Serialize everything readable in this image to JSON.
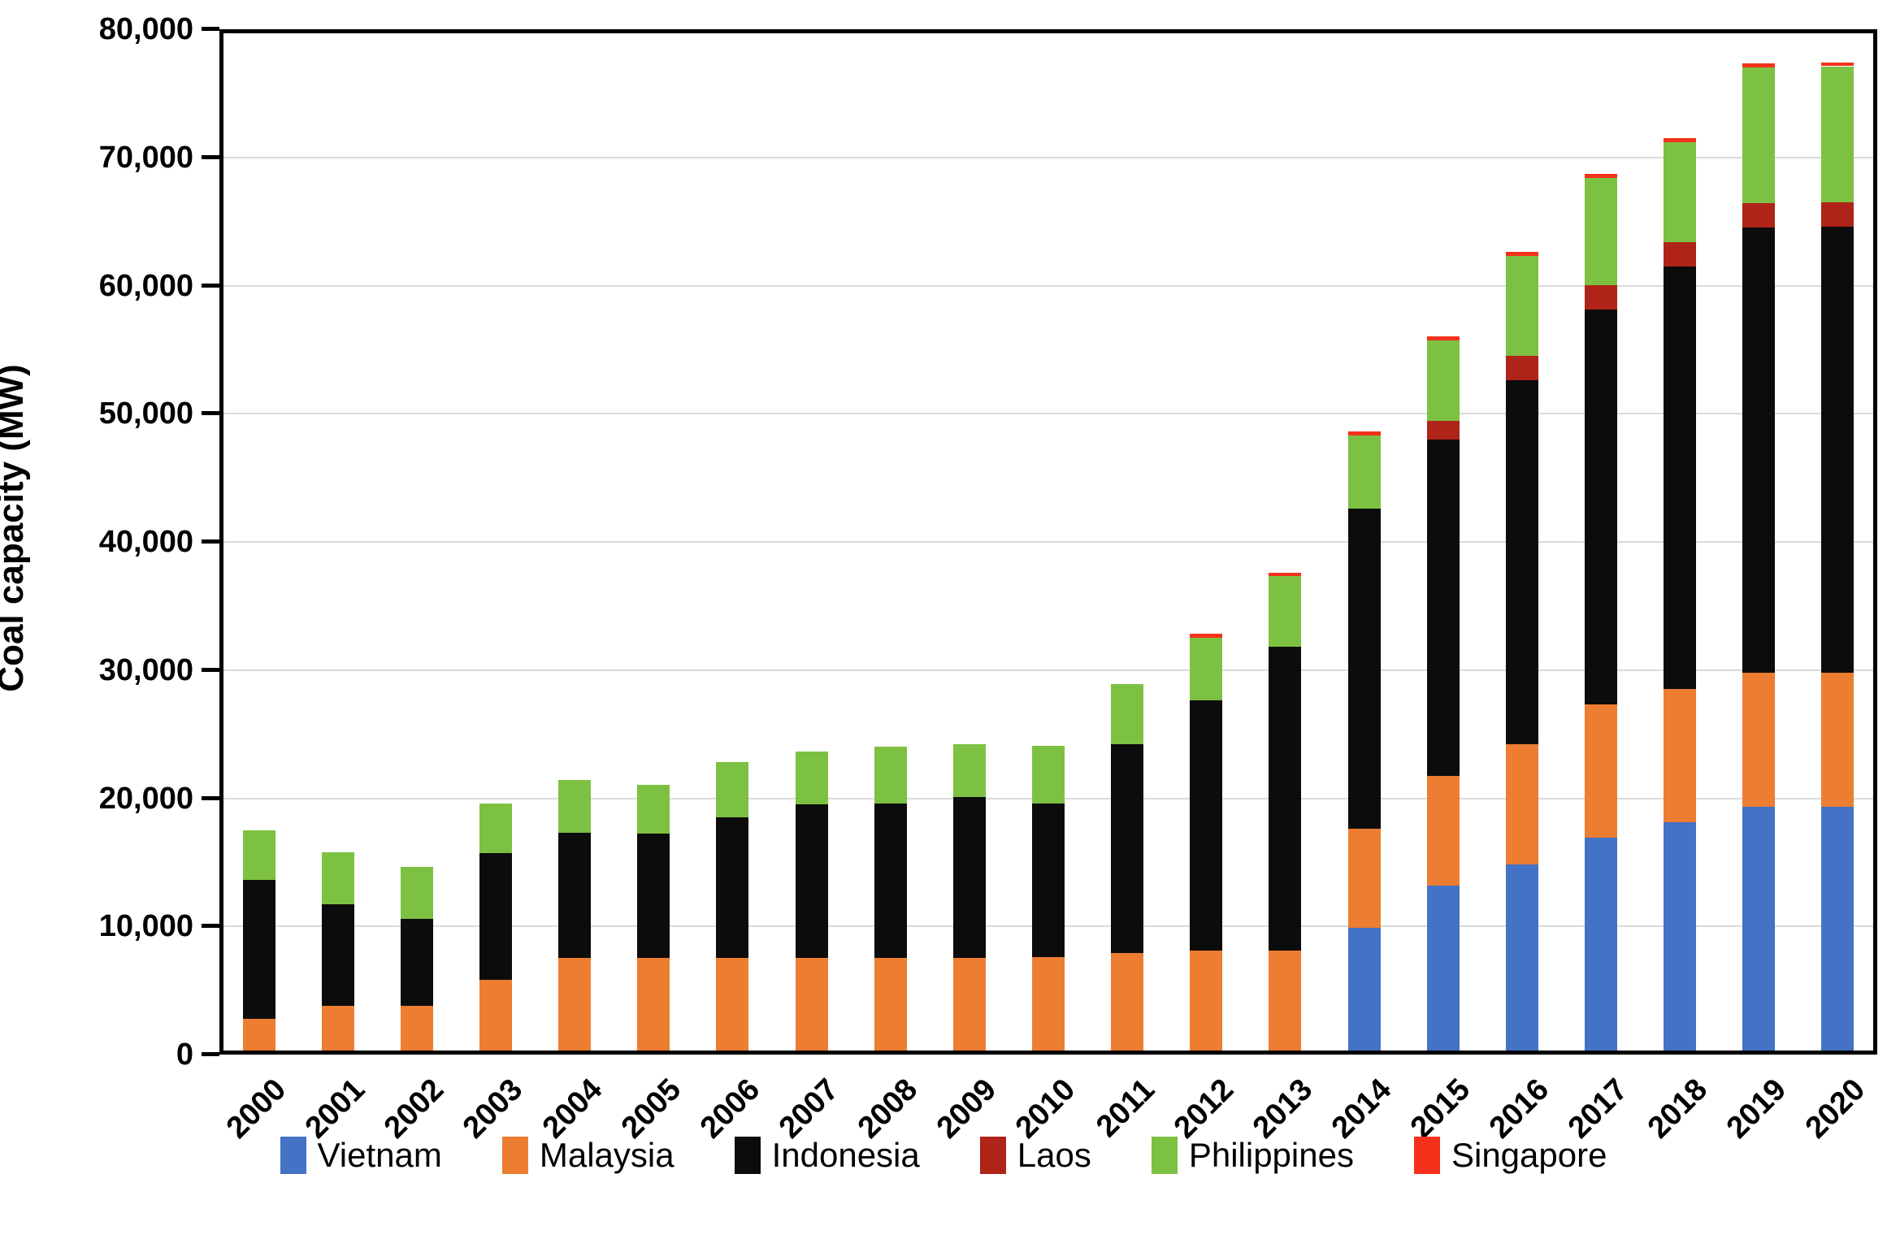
{
  "chart_data": {
    "type": "bar",
    "stacked": true,
    "title": "",
    "xlabel": "",
    "ylabel": "Coal capacity (MW)",
    "ylim": [
      0,
      80000
    ],
    "ytick_interval": 10000,
    "ytick_labels": [
      "0",
      "10,000",
      "20,000",
      "30,000",
      "40,000",
      "50,000",
      "60,000",
      "70,000",
      "80,000"
    ],
    "grid": true,
    "legend_position": "bottom",
    "categories": [
      "2000",
      "2001",
      "2002",
      "2003",
      "2004",
      "2005",
      "2006",
      "2007",
      "2008",
      "2009",
      "2010",
      "2011",
      "2012",
      "2013",
      "2014",
      "2015",
      "2016",
      "2017",
      "2018",
      "2019",
      "2020"
    ],
    "series": [
      {
        "name": "Vietnam",
        "color": "#4472C4",
        "values": [
          0,
          0,
          0,
          0,
          0,
          0,
          0,
          0,
          0,
          0,
          0,
          0,
          0,
          0,
          9600,
          12900,
          14500,
          16600,
          17800,
          19000,
          19000
        ]
      },
      {
        "name": "Malaysia",
        "color": "#ED7D31",
        "values": [
          2500,
          3500,
          3500,
          5500,
          7200,
          7200,
          7200,
          7200,
          7200,
          7200,
          7300,
          7600,
          7800,
          7800,
          7700,
          8500,
          9400,
          10400,
          10400,
          10500,
          10500
        ]
      },
      {
        "name": "Indonesia",
        "color": "#0c0c0c",
        "values": [
          10800,
          7900,
          6800,
          9900,
          9800,
          9700,
          11000,
          12000,
          12100,
          12600,
          12000,
          16300,
          19500,
          23700,
          25000,
          26300,
          28400,
          30800,
          33000,
          34700,
          34800
        ]
      },
      {
        "name": "Laos",
        "color": "#B02318",
        "values": [
          0,
          0,
          0,
          0,
          0,
          0,
          0,
          0,
          0,
          0,
          0,
          0,
          0,
          0,
          0,
          1400,
          1900,
          1900,
          1900,
          1900,
          1900
        ]
      },
      {
        "name": "Philippines",
        "color": "#7DC142",
        "values": [
          3900,
          4100,
          4000,
          3900,
          4100,
          3800,
          4300,
          4100,
          4400,
          4100,
          4500,
          4700,
          4900,
          5500,
          5700,
          6300,
          7800,
          8400,
          7800,
          10600,
          10600
        ]
      },
      {
        "name": "Singapore",
        "color": "#F5301B",
        "values": [
          0,
          0,
          0,
          0,
          0,
          0,
          0,
          0,
          0,
          0,
          0,
          0,
          300,
          300,
          300,
          300,
          300,
          300,
          300,
          300,
          300
        ]
      }
    ],
    "totals": [
      17200,
      15500,
      14300,
      19300,
      21100,
      20700,
      22500,
      23300,
      23700,
      23900,
      23800,
      28600,
      32500,
      37300,
      48300,
      55700,
      62300,
      68400,
      71200,
      77000,
      77100
    ]
  },
  "axis_colors": {
    "axis_line": "#000000",
    "gridline": "#dadada",
    "background": "#ffffff"
  }
}
